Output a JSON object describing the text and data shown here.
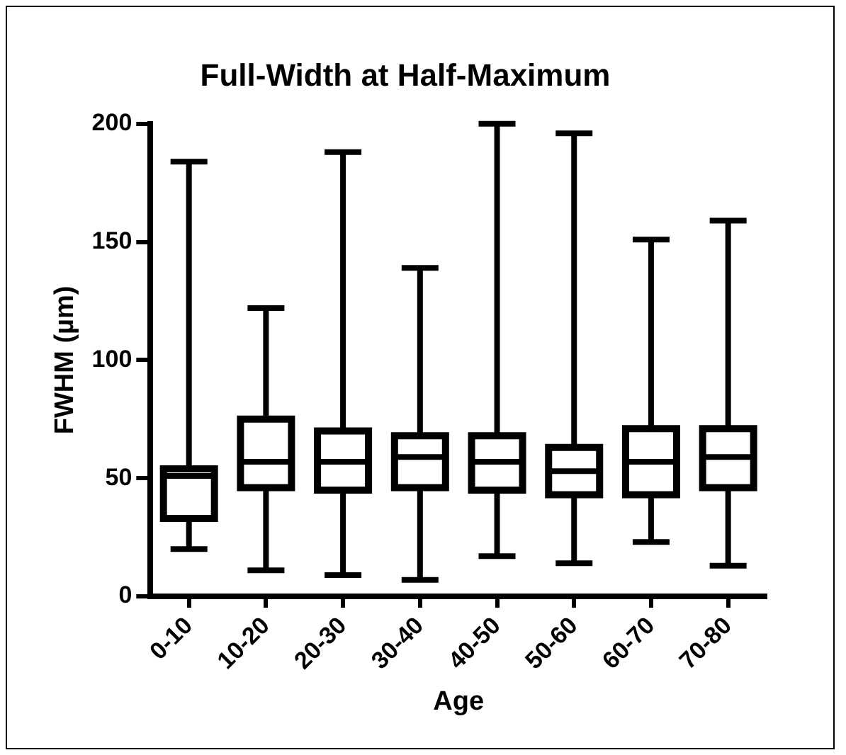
{
  "chart_data": {
    "type": "box",
    "title": "Full-Width at Half-Maximum",
    "xlabel": "Age",
    "ylabel": "FWHM (µm)",
    "categories": [
      "0-10",
      "10-20",
      "20-30",
      "30-40",
      "40-50",
      "50-60",
      "60-70",
      "70-80"
    ],
    "boxes": [
      {
        "low": 20,
        "q1": 33,
        "median": 51,
        "q3": 54,
        "high": 184
      },
      {
        "low": 11,
        "q1": 46,
        "median": 57,
        "q3": 75,
        "high": 122
      },
      {
        "low": 9,
        "q1": 45,
        "median": 57,
        "q3": 70,
        "high": 188
      },
      {
        "low": 7,
        "q1": 46,
        "median": 59,
        "q3": 68,
        "high": 139
      },
      {
        "low": 17,
        "q1": 45,
        "median": 57,
        "q3": 68,
        "high": 200
      },
      {
        "low": 14,
        "q1": 43,
        "median": 53,
        "q3": 63,
        "high": 196
      },
      {
        "low": 23,
        "q1": 43,
        "median": 57,
        "q3": 71,
        "high": 151
      },
      {
        "low": 13,
        "q1": 46,
        "median": 59,
        "q3": 71,
        "high": 159
      }
    ],
    "color": "#000000",
    "ylim": [
      0,
      200
    ],
    "yticks": [
      0,
      50,
      100,
      150,
      200
    ],
    "grid": false,
    "legend": false
  }
}
